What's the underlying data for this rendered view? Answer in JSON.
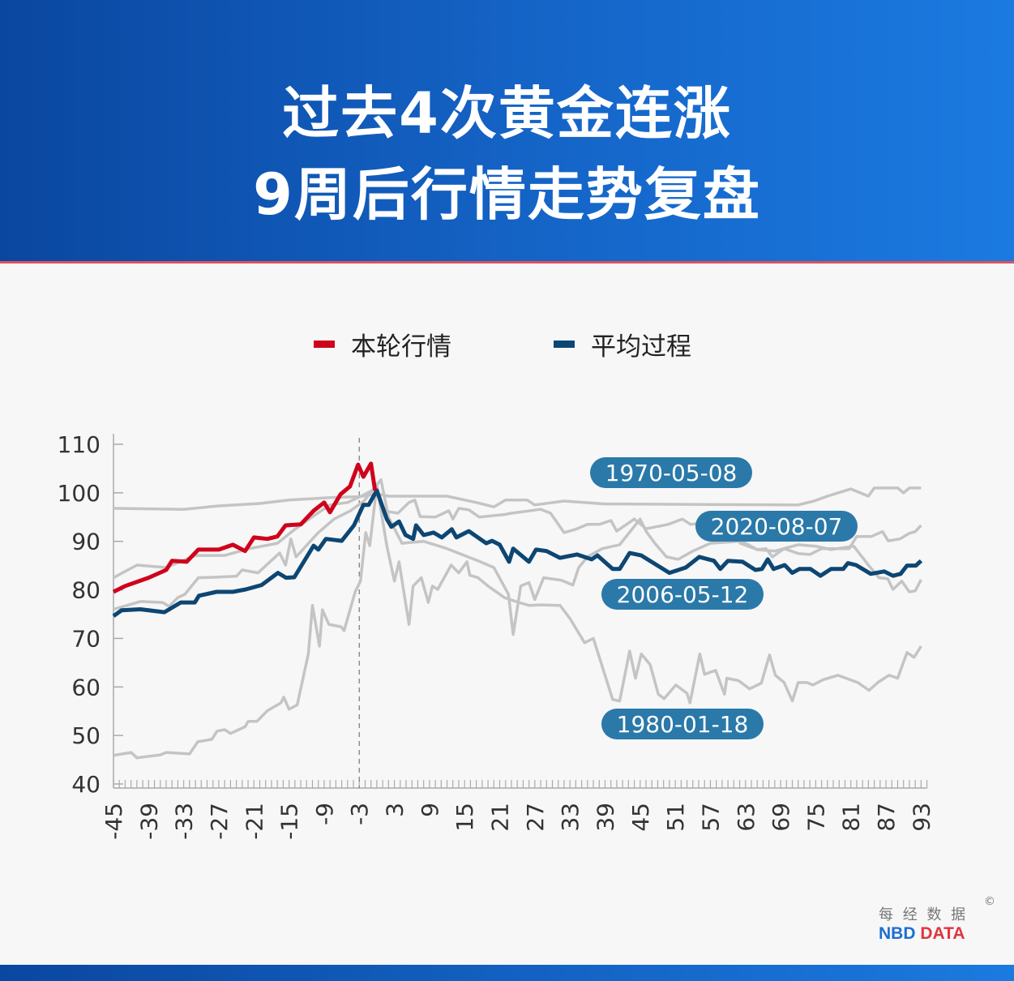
{
  "header": {
    "title_line1": "过去4次黄金连涨",
    "title_line2": "9周后行情走势复盘"
  },
  "logo": {
    "cn": "每 经 数 据",
    "en_part1": "NBD",
    "en_part2": "DATA",
    "copyright": "©"
  },
  "colors": {
    "current": "#d0021b",
    "average": "#0d4673",
    "history": "#c4c4c4",
    "label_bg": "#2a79a9",
    "header": "#0d4ea8",
    "logo_blue": "#1e6fd0",
    "logo_red": "#e0353f"
  },
  "chart_data": {
    "type": "line",
    "xlabel": "",
    "ylabel": "",
    "xlim": [
      -45,
      94
    ],
    "ylim": [
      40,
      110
    ],
    "yticks": [
      40,
      50,
      60,
      70,
      80,
      90,
      100,
      110
    ],
    "xticks": [
      -45,
      -39,
      -33,
      -27,
      -21,
      -15,
      -9,
      -3,
      3,
      9,
      15,
      21,
      27,
      33,
      39,
      45,
      51,
      57,
      63,
      69,
      75,
      81,
      87,
      93
    ],
    "reference_line_x": -3,
    "legend": {
      "position": "top",
      "entries": [
        "本轮行情",
        "平均过程"
      ]
    },
    "grid": false,
    "series": [
      {
        "name": "1970-05-08",
        "role": "history",
        "x": [
          -45,
          -33,
          -27,
          -20,
          -15,
          -8,
          -3,
          0,
          2,
          12,
          17,
          20,
          22,
          25.7,
          27,
          32,
          39,
          72,
          74.7,
          77,
          81,
          84,
          85,
          89,
          90,
          91,
          93
        ],
        "y": [
          96.8,
          96.6,
          97.3,
          97.8,
          98.5,
          99,
          99.2,
          99.8,
          99.3,
          99.3,
          98,
          97.1,
          98.5,
          98.5,
          97.5,
          98.3,
          97.7,
          97.5,
          98.3,
          99.3,
          100.8,
          99.3,
          101,
          101,
          100,
          101,
          101
        ]
      },
      {
        "name": "2020-08-07",
        "role": "history",
        "x": [
          -45,
          -41,
          -36,
          -31,
          -26,
          -21.8,
          -17,
          -14,
          -11,
          -8,
          -5,
          -2.2,
          0,
          1,
          3.6,
          5.5,
          6.5,
          7.4,
          10,
          12.3,
          13,
          14,
          15.7,
          17.5,
          21.7,
          23,
          28,
          29.7,
          32,
          34,
          36,
          38,
          40,
          41,
          44,
          46,
          49.8,
          52.2,
          53.6,
          57.6,
          61.2,
          62.1,
          65,
          66.5,
          67.6,
          69.6,
          72,
          74,
          76,
          80.7,
          82,
          84.5,
          86.4,
          87.4,
          89.4,
          90.9,
          92,
          93
        ],
        "y": [
          82.5,
          85.1,
          84.6,
          87.1,
          87.1,
          88.5,
          89.6,
          92.5,
          95.1,
          97.5,
          98,
          99.6,
          101,
          96.3,
          95.8,
          98,
          98.5,
          95.1,
          95,
          96.3,
          94.6,
          96.8,
          96.5,
          95,
          95.5,
          95.8,
          96.6,
          95.8,
          91.8,
          92.5,
          93.5,
          93.5,
          94.3,
          92.1,
          94.6,
          92.6,
          93.5,
          94.6,
          93.5,
          94.1,
          94.6,
          89.6,
          88.3,
          88.5,
          86.8,
          88.5,
          87.5,
          87.3,
          88.5,
          88.5,
          91,
          91,
          92,
          90.1,
          90.5,
          91.6,
          92,
          93.3
        ]
      },
      {
        "name": "2006-05-12",
        "role": "history",
        "x": [
          -45,
          -40.4,
          -36.6,
          -35.5,
          -34,
          -32.8,
          -30.5,
          -27.7,
          -24,
          -23,
          -20.3,
          -16.6,
          -15.6,
          -14.7,
          -13.8,
          -10,
          -7.3,
          -4.5,
          -2.2,
          0.7,
          2,
          4.3,
          8,
          12,
          17.3,
          20,
          22.5,
          23.3,
          24.6,
          26,
          27,
          28.5,
          31.5,
          33.5,
          34.5,
          36,
          38.5,
          41.5,
          45,
          46,
          47.5,
          49.5,
          51.5,
          54,
          57,
          61.6,
          63,
          65,
          68,
          72,
          75,
          77.6,
          81.5,
          84,
          85.8,
          87.3,
          88.2,
          89.7,
          91,
          92,
          93
        ],
        "y": [
          76,
          77.6,
          77.4,
          76.6,
          78.4,
          79.1,
          82.5,
          82.6,
          82.8,
          84.1,
          83.5,
          87.6,
          85.1,
          90.5,
          86.8,
          91.8,
          94.6,
          96.3,
          98.3,
          102.7,
          95,
          89.6,
          90,
          88.5,
          86,
          84.6,
          79.1,
          70.8,
          80.8,
          81.5,
          78,
          82.5,
          82,
          81,
          84.6,
          86.8,
          88.5,
          89.3,
          94.6,
          92.1,
          89.6,
          86.8,
          86.3,
          88,
          89.6,
          90,
          89.6,
          88.3,
          88,
          89.3,
          89,
          88.3,
          89,
          85.1,
          82.5,
          82.3,
          80.1,
          81.8,
          79.6,
          79.8,
          82.1
        ]
      },
      {
        "name": "1980-01-18",
        "role": "history",
        "x": [
          -45,
          -42,
          -41,
          -37,
          -36,
          -32,
          -30.6,
          -28.2,
          -27.3,
          -26,
          -25,
          -22.5,
          -22,
          -20.5,
          -18.7,
          -16.4,
          -15.9,
          -15,
          -13.6,
          -11.7,
          -11,
          -9.8,
          -9.3,
          -8.2,
          -6.1,
          -5.6,
          -3.7,
          -2.8,
          -1.9,
          -1.2,
          0,
          1.7,
          3,
          3.8,
          5.5,
          6.2,
          7.6,
          8.8,
          9.5,
          10.4,
          12.7,
          14,
          15.4,
          15.9,
          17.3,
          19,
          21.8,
          24,
          26,
          28,
          31.3,
          33,
          35.5,
          37,
          40.3,
          41.5,
          43.2,
          44.2,
          45.2,
          46.7,
          48.1,
          49.1,
          51.1,
          53,
          53.5,
          55.2,
          56,
          57.9,
          59.4,
          59.8,
          61.8,
          63.7,
          65.7,
          67.1,
          68.1,
          69.6,
          71,
          72,
          73.5,
          74.5,
          76.3,
          78.8,
          82.2,
          84.1,
          85.6,
          87.5,
          89,
          90.6,
          91.8,
          93
        ],
        "y": [
          45.9,
          46.5,
          45.4,
          46,
          46.5,
          46.2,
          48.7,
          49.2,
          50.9,
          51.2,
          50.4,
          51.8,
          52.9,
          52.9,
          55.1,
          56.7,
          57.9,
          55.4,
          56.3,
          66.8,
          76.8,
          68.4,
          75.9,
          72.9,
          72.4,
          71.6,
          79.6,
          81.8,
          91.8,
          89.1,
          101.5,
          89.1,
          81.8,
          85.8,
          72.9,
          80.8,
          82.5,
          77.4,
          80.8,
          80.1,
          85.1,
          83.5,
          85.8,
          83,
          82.5,
          80.8,
          78.4,
          77.5,
          76.8,
          76.9,
          76.8,
          74.1,
          69.1,
          70,
          57.4,
          57.1,
          67.4,
          61.8,
          66.8,
          64.6,
          58.5,
          57.6,
          60.4,
          58.7,
          56.7,
          66.8,
          62.6,
          63.4,
          58.5,
          61.8,
          61.3,
          59.6,
          60.8,
          66.6,
          62.4,
          60.9,
          57.1,
          60.9,
          60.9,
          60.4,
          61.5,
          62.4,
          60.9,
          59.3,
          60.9,
          62.4,
          61.8,
          67.1,
          66.1,
          68.4
        ]
      },
      {
        "name": "平均过程",
        "role": "average",
        "x": [
          -45,
          -43.6,
          -40.4,
          -36.3,
          -33.5,
          -31.1,
          -30.4,
          -27.4,
          -24.6,
          -22.4,
          -19.7,
          -16.9,
          -15.5,
          -14.1,
          -10.8,
          -10,
          -8.7,
          -6,
          -3.9,
          -2.3,
          -1.4,
          0,
          1.7,
          2.5,
          3.8,
          4.9,
          6.2,
          6.7,
          8,
          9.7,
          11.1,
          12.8,
          13.6,
          15.7,
          18.7,
          19.7,
          21,
          22.6,
          23.3,
          26,
          27.2,
          29,
          31.3,
          34.2,
          36.7,
          37.7,
          40.3,
          41.5,
          43.2,
          45.2,
          48.9,
          50,
          52.8,
          55.1,
          57.6,
          58.7,
          60,
          62.5,
          64.7,
          65.8,
          66.8,
          67.8,
          69.7,
          71,
          72.2,
          74.1,
          75.8,
          77.6,
          79.7,
          80.5,
          81.9,
          84.4,
          86.7,
          88.2,
          89.5,
          90.6,
          92.1,
          93
        ],
        "y": [
          74.6,
          75.8,
          76,
          75.4,
          77.4,
          77.4,
          78.8,
          79.6,
          79.6,
          80.1,
          81,
          83.5,
          82.5,
          82.6,
          89.1,
          88.3,
          90.5,
          90.1,
          93.3,
          97.5,
          97.5,
          100.5,
          94.6,
          93,
          94.1,
          91.3,
          90.5,
          93.3,
          91.3,
          91.8,
          90.8,
          92.5,
          90.8,
          92.1,
          89.6,
          90.1,
          89.3,
          85.8,
          88.5,
          85.8,
          88.3,
          88,
          86.6,
          87.3,
          86.3,
          87.1,
          84.3,
          84.3,
          87.6,
          87.1,
          84.3,
          83.5,
          84.6,
          86.8,
          86,
          84.3,
          86,
          85.8,
          84.1,
          84.3,
          86.3,
          84.3,
          85.1,
          83.5,
          84.3,
          84.3,
          82.9,
          84.3,
          84.3,
          85.5,
          85.1,
          83.3,
          83.8,
          82.9,
          83.3,
          85,
          85,
          86
        ]
      },
      {
        "name": "本轮行情",
        "role": "current",
        "x": [
          -45,
          -43,
          -39,
          -36,
          -35,
          -32.5,
          -30.5,
          -27,
          -24.6,
          -22.5,
          -21,
          -18.7,
          -17,
          -15.6,
          -13,
          -10.8,
          -9,
          -8,
          -6.2,
          -4.6,
          -3.2,
          -2.3,
          -1,
          -0.3
        ],
        "y": [
          79.6,
          80.8,
          82.5,
          84.1,
          86,
          85.8,
          88.3,
          88.3,
          89.3,
          88,
          90.8,
          90.5,
          91,
          93.3,
          93.5,
          96.3,
          98,
          96,
          99.7,
          101.3,
          105.8,
          103.3,
          106,
          100.5
        ]
      }
    ]
  }
}
